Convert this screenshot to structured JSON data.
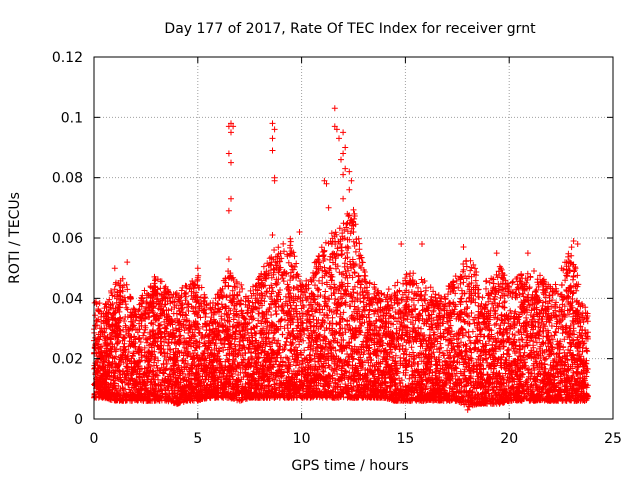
{
  "chart_data": {
    "type": "scatter",
    "title": "Day 177 of 2017, Rate Of TEC Index for receiver grnt",
    "xlabel": "GPS time / hours",
    "ylabel": "ROTI / TECUs",
    "xlim": [
      0,
      25
    ],
    "ylim": [
      0,
      0.12
    ],
    "xticks": [
      "0",
      "5",
      "10",
      "15",
      "20",
      "25"
    ],
    "yticks": [
      "0",
      "0.02",
      "0.04",
      "0.06",
      "0.08",
      "0.1",
      "0.12"
    ],
    "marker": "+",
    "color": "#ff0000",
    "grid": true,
    "series": [
      {
        "name": "ROTI",
        "envelope_hours": [
          0,
          0.5,
          1,
          1.5,
          2,
          2.5,
          3,
          3.5,
          4,
          4.5,
          5,
          5.5,
          6,
          6.5,
          7,
          7.5,
          8,
          8.5,
          9,
          9.5,
          10,
          10.5,
          11,
          11.5,
          12,
          12.5,
          13,
          13.5,
          14,
          14.5,
          15,
          15.5,
          16,
          16.5,
          17,
          17.5,
          18,
          18.5,
          19,
          19.5,
          20,
          20.5,
          21,
          21.5,
          22,
          22.5,
          23,
          23.5,
          23.8
        ],
        "envelope_low": [
          0.007,
          0.007,
          0.006,
          0.006,
          0.006,
          0.006,
          0.006,
          0.006,
          0.005,
          0.006,
          0.006,
          0.007,
          0.007,
          0.007,
          0.006,
          0.007,
          0.007,
          0.007,
          0.007,
          0.007,
          0.007,
          0.007,
          0.007,
          0.007,
          0.007,
          0.007,
          0.007,
          0.007,
          0.007,
          0.006,
          0.006,
          0.006,
          0.006,
          0.006,
          0.006,
          0.006,
          0.004,
          0.005,
          0.005,
          0.005,
          0.006,
          0.006,
          0.006,
          0.006,
          0.006,
          0.006,
          0.006,
          0.006,
          0.006
        ],
        "envelope_high": [
          0.04,
          0.038,
          0.045,
          0.048,
          0.036,
          0.045,
          0.048,
          0.044,
          0.042,
          0.045,
          0.048,
          0.038,
          0.042,
          0.05,
          0.045,
          0.042,
          0.048,
          0.055,
          0.058,
          0.06,
          0.045,
          0.05,
          0.058,
          0.062,
          0.065,
          0.07,
          0.05,
          0.045,
          0.042,
          0.045,
          0.048,
          0.05,
          0.045,
          0.042,
          0.044,
          0.048,
          0.054,
          0.05,
          0.045,
          0.052,
          0.045,
          0.048,
          0.05,
          0.048,
          0.044,
          0.05,
          0.058,
          0.04,
          0.035
        ],
        "outliers": [
          {
            "x": 6.5,
            "y": 0.097
          },
          {
            "x": 6.6,
            "y": 0.098
          },
          {
            "x": 6.7,
            "y": 0.097
          },
          {
            "x": 6.6,
            "y": 0.095
          },
          {
            "x": 6.5,
            "y": 0.088
          },
          {
            "x": 6.6,
            "y": 0.085
          },
          {
            "x": 6.6,
            "y": 0.073
          },
          {
            "x": 6.5,
            "y": 0.069
          },
          {
            "x": 6.5,
            "y": 0.053
          },
          {
            "x": 8.6,
            "y": 0.098
          },
          {
            "x": 8.7,
            "y": 0.096
          },
          {
            "x": 8.6,
            "y": 0.093
          },
          {
            "x": 8.6,
            "y": 0.089
          },
          {
            "x": 8.7,
            "y": 0.08
          },
          {
            "x": 8.7,
            "y": 0.079
          },
          {
            "x": 8.6,
            "y": 0.061
          },
          {
            "x": 9.9,
            "y": 0.062
          },
          {
            "x": 11.1,
            "y": 0.079
          },
          {
            "x": 11.2,
            "y": 0.078
          },
          {
            "x": 11.3,
            "y": 0.07
          },
          {
            "x": 11.6,
            "y": 0.103
          },
          {
            "x": 11.6,
            "y": 0.097
          },
          {
            "x": 11.7,
            "y": 0.096
          },
          {
            "x": 12.0,
            "y": 0.095
          },
          {
            "x": 11.8,
            "y": 0.093
          },
          {
            "x": 12.1,
            "y": 0.09
          },
          {
            "x": 12.0,
            "y": 0.088
          },
          {
            "x": 11.9,
            "y": 0.086
          },
          {
            "x": 12.1,
            "y": 0.083
          },
          {
            "x": 12.0,
            "y": 0.081
          },
          {
            "x": 12.3,
            "y": 0.082
          },
          {
            "x": 12.4,
            "y": 0.079
          },
          {
            "x": 12.3,
            "y": 0.076
          },
          {
            "x": 12.0,
            "y": 0.073
          },
          {
            "x": 12.2,
            "y": 0.068
          },
          {
            "x": 12.4,
            "y": 0.066
          },
          {
            "x": 12.5,
            "y": 0.064
          },
          {
            "x": 12.5,
            "y": 0.062
          },
          {
            "x": 1.0,
            "y": 0.05
          },
          {
            "x": 1.6,
            "y": 0.052
          },
          {
            "x": 5.0,
            "y": 0.05
          },
          {
            "x": 14.8,
            "y": 0.058
          },
          {
            "x": 15.8,
            "y": 0.058
          },
          {
            "x": 17.8,
            "y": 0.057
          },
          {
            "x": 19.4,
            "y": 0.055
          },
          {
            "x": 20.9,
            "y": 0.055
          },
          {
            "x": 23.1,
            "y": 0.059
          },
          {
            "x": 23.3,
            "y": 0.058
          },
          {
            "x": 18.0,
            "y": 0.003
          }
        ]
      }
    ]
  }
}
